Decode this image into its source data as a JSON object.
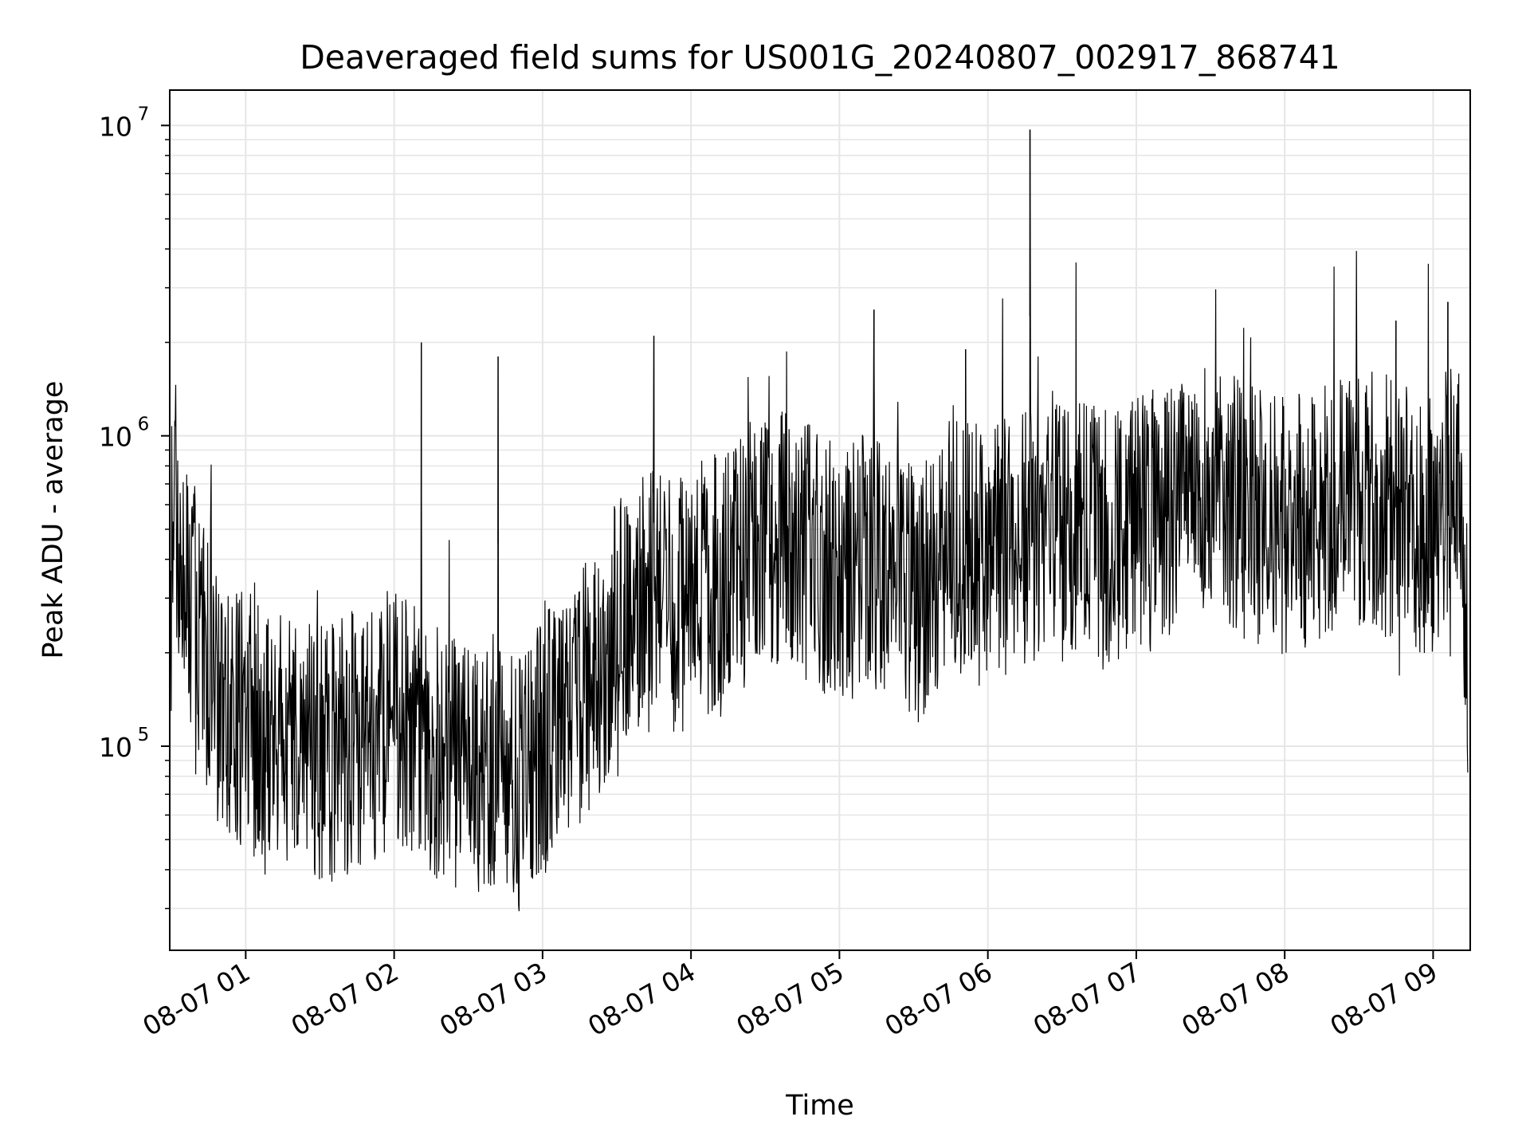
{
  "chart_data": {
    "type": "line",
    "title": "Deaveraged field sums for US001G_20240807_002917_868741",
    "xlabel": "Time",
    "ylabel": "Peak ADU - average",
    "yscale": "log",
    "ylim": [
      22000,
      13000000
    ],
    "xlim": [
      "2024-08-07 00:29:17",
      "2024-08-07 09:15:00"
    ],
    "grid": true,
    "line_color": "#000000",
    "grid_color": "#e6e6e6",
    "x_ticks": [
      {
        "time": "2024-08-07 01:00",
        "label": "08-07 01"
      },
      {
        "time": "2024-08-07 02:00",
        "label": "08-07 02"
      },
      {
        "time": "2024-08-07 03:00",
        "label": "08-07 03"
      },
      {
        "time": "2024-08-07 04:00",
        "label": "08-07 04"
      },
      {
        "time": "2024-08-07 05:00",
        "label": "08-07 05"
      },
      {
        "time": "2024-08-07 06:00",
        "label": "08-07 06"
      },
      {
        "time": "2024-08-07 07:00",
        "label": "08-07 07"
      },
      {
        "time": "2024-08-07 08:00",
        "label": "08-07 08"
      },
      {
        "time": "2024-08-07 09:00",
        "label": "08-07 09"
      }
    ],
    "y_ticks": [
      {
        "value": 100000,
        "base": "10",
        "exp": "5"
      },
      {
        "value": 1000000,
        "base": "10",
        "exp": "6"
      },
      {
        "value": 10000000,
        "base": "10",
        "exp": "7"
      }
    ],
    "series": [
      {
        "x": [
          "00:30",
          "00:40",
          "00:50",
          "01:00",
          "01:10",
          "01:20",
          "01:30",
          "01:40",
          "01:50",
          "02:00",
          "02:10",
          "02:20",
          "02:30",
          "02:40",
          "02:50",
          "03:00",
          "03:10",
          "03:20",
          "03:30",
          "03:40",
          "03:50",
          "04:00",
          "04:10",
          "04:20",
          "04:30",
          "04:40",
          "04:50",
          "05:00",
          "05:10",
          "05:20",
          "05:30",
          "05:40",
          "05:50",
          "06:00",
          "06:10",
          "06:20",
          "06:30",
          "06:40",
          "06:50",
          "07:00",
          "07:10",
          "07:20",
          "07:30",
          "07:40",
          "07:50",
          "08:00",
          "08:10",
          "08:20",
          "08:30",
          "08:40",
          "08:50",
          "09:00",
          "09:10",
          "09:14"
        ],
        "values": [
          700000,
          250000,
          140000,
          120000,
          110000,
          100000,
          95000,
          100000,
          110000,
          120000,
          105000,
          95000,
          80000,
          85000,
          75000,
          100000,
          120000,
          160000,
          250000,
          300000,
          280000,
          300000,
          350000,
          400000,
          450000,
          500000,
          400000,
          350000,
          400000,
          350000,
          300000,
          400000,
          450000,
          400000,
          450000,
          500000,
          550000,
          500000,
          450000,
          500000,
          550000,
          600000,
          650000,
          600000,
          550000,
          500000,
          550000,
          600000,
          650000,
          600000,
          550000,
          500000,
          800000,
          200000
        ],
        "spikes": [
          {
            "x": "02:11",
            "value": 2000000
          },
          {
            "x": "02:42",
            "value": 1800000
          },
          {
            "x": "03:45",
            "value": 2100000
          },
          {
            "x": "05:14",
            "value": 2550000
          },
          {
            "x": "05:51",
            "value": 1900000
          },
          {
            "x": "06:17",
            "value": 9700000
          },
          {
            "x": "08:45",
            "value": 2350000
          },
          {
            "x": "09:06",
            "value": 2700000
          }
        ]
      }
    ]
  }
}
